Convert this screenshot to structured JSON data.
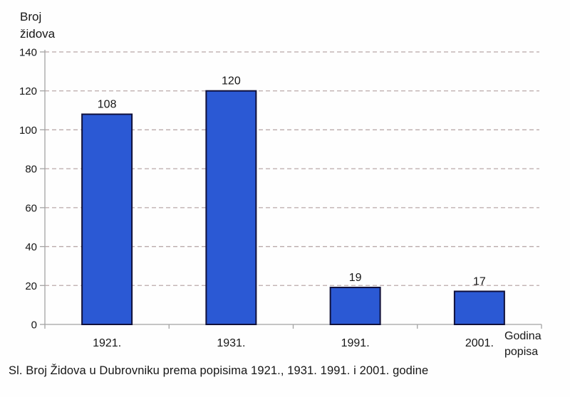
{
  "chart_data": {
    "type": "bar",
    "title": "",
    "categories": [
      "1921.",
      "1931.",
      "1991.",
      "2001."
    ],
    "values": [
      108,
      120,
      19,
      17
    ],
    "ylabel": "Broj židova",
    "ylabel_lines": [
      "Broj",
      "židova"
    ],
    "xlabel": "Godina popisa",
    "xlabel_lines": [
      "Godina",
      "popisa"
    ],
    "ylim": [
      0,
      140
    ],
    "ytick_step": 20,
    "yticks": [
      0,
      20,
      40,
      60,
      80,
      100,
      120,
      140
    ],
    "grid": "horizontal-dashed",
    "legend": "none",
    "bar_value_labels": [
      "108",
      "120",
      "19",
      "17"
    ]
  },
  "caption": "Sl. Broj Židova u Dubrovniku prema popisima 1921., 1931. 1991. i 2001. godine",
  "colors": {
    "bar_fill": "#2b59d4",
    "bar_border": "#10103a",
    "gridline": "#b9a9a9",
    "axis": "#a3a3a3",
    "text": "#161616",
    "background": "#ffffff"
  }
}
